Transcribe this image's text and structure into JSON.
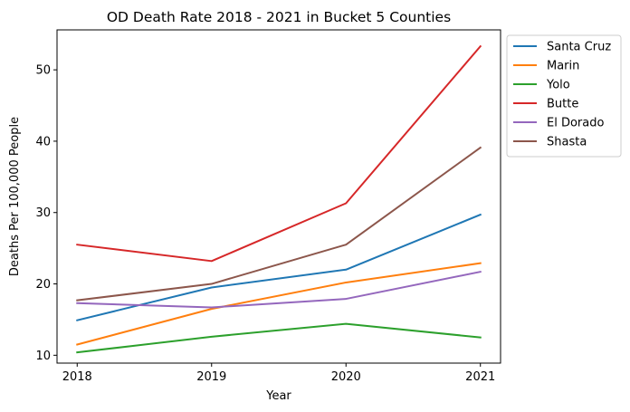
{
  "chart_data": {
    "type": "line",
    "title": "OD Death Rate 2018 - 2021 in Bucket 5 Counties",
    "xlabel": "Year",
    "ylabel": "Deaths Per 100,000 People",
    "x": [
      2018,
      2019,
      2020,
      2021
    ],
    "x_tick_labels": [
      "2018",
      "2019",
      "2020",
      "2021"
    ],
    "y_ticks": [
      10,
      20,
      30,
      40,
      50
    ],
    "y_tick_labels": [
      "10",
      "20",
      "30",
      "40",
      "50"
    ],
    "xlim": [
      2017.85,
      2021.15
    ],
    "ylim": [
      8.9,
      55.6
    ],
    "grid": false,
    "legend_position": "outside upper right",
    "series": [
      {
        "name": "Santa Cruz",
        "color": "#1f77b4",
        "values": [
          14.9,
          19.5,
          22.0,
          29.7
        ]
      },
      {
        "name": "Marin",
        "color": "#ff7f0e",
        "values": [
          11.5,
          16.5,
          20.2,
          22.9
        ]
      },
      {
        "name": "Yolo",
        "color": "#2ca02c",
        "values": [
          10.4,
          12.6,
          14.4,
          12.5
        ]
      },
      {
        "name": "Butte",
        "color": "#d62728",
        "values": [
          25.5,
          23.2,
          31.3,
          53.3
        ]
      },
      {
        "name": "El Dorado",
        "color": "#9467bd",
        "values": [
          17.3,
          16.7,
          17.9,
          21.7
        ]
      },
      {
        "name": "Shasta",
        "color": "#8c564b",
        "values": [
          17.7,
          20.0,
          25.5,
          39.1
        ]
      }
    ]
  }
}
